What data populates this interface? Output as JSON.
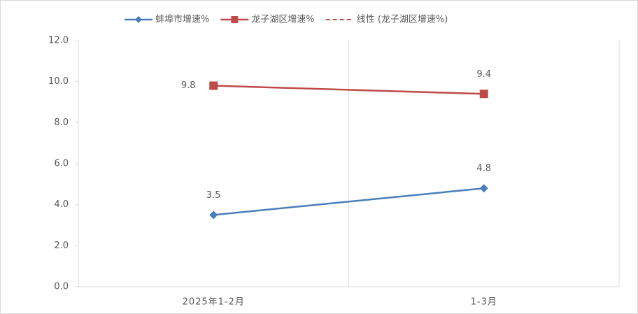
{
  "chart_data": {
    "type": "line",
    "categories": [
      "2025年1-2月",
      "1-3月"
    ],
    "series": [
      {
        "name": "蚌埠市增速%",
        "color": "#4a7ebb",
        "marker": "diamond",
        "values": [
          3.5,
          4.8
        ]
      },
      {
        "name": "龙子湖区增速%",
        "color": "#be4b48",
        "marker": "square",
        "values": [
          9.8,
          9.4
        ]
      },
      {
        "name": "线性 (龙子湖区增速%)",
        "color": "#be4b48",
        "dashed": true,
        "values": [
          9.8,
          9.4
        ]
      }
    ],
    "ylim": [
      0,
      12
    ],
    "yticks": [
      {
        "value": 0,
        "label": "0.0"
      },
      {
        "value": 2,
        "label": "2.0"
      },
      {
        "value": 4,
        "label": "4.0"
      },
      {
        "value": 6,
        "label": "6.0"
      },
      {
        "value": 8,
        "label": "8.0"
      },
      {
        "value": 10,
        "label": "10.0"
      },
      {
        "value": 12,
        "label": "12.0"
      }
    ],
    "grid": false,
    "legend": "top"
  }
}
